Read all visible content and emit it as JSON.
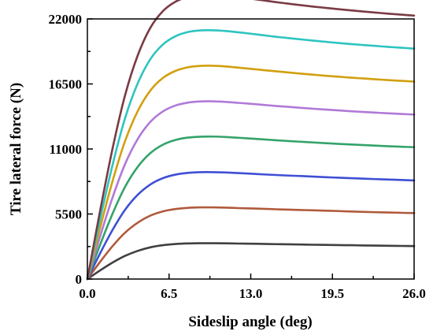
{
  "chart_data": {
    "type": "line",
    "title": "",
    "xlabel": "Sideslip angle (deg)",
    "ylabel": "Tire lateral force (N)",
    "xlim": [
      0,
      26
    ],
    "ylim": [
      0,
      22000
    ],
    "x_ticks": [
      0,
      6.5,
      13,
      19.5,
      26
    ],
    "x_tick_labels": [
      "0.0",
      "6.5",
      "13.0",
      "19.5",
      "26.0"
    ],
    "y_ticks": [
      0,
      5500,
      11000,
      16500,
      22000
    ],
    "y_tick_labels": [
      "0",
      "5500",
      "11000",
      "16500",
      "22000"
    ],
    "grid": false,
    "x": [
      0,
      1,
      2,
      3,
      4,
      5,
      6,
      7,
      8,
      9,
      10,
      11,
      12,
      13,
      14,
      15,
      16,
      17,
      18,
      19,
      20,
      21,
      22,
      23,
      24,
      25,
      26
    ],
    "series": [
      {
        "color": "#404040",
        "values": [
          0,
          720,
          1390,
          1960,
          2380,
          2680,
          2860,
          2960,
          3010,
          3030,
          3030,
          3020,
          3000,
          2990,
          2970,
          2950,
          2940,
          2920,
          2900,
          2890,
          2870,
          2860,
          2840,
          2830,
          2810,
          2800,
          2790
        ]
      },
      {
        "color": "#b05a3c",
        "values": [
          0,
          1440,
          2780,
          3920,
          4760,
          5360,
          5720,
          5920,
          6020,
          6060,
          6060,
          6040,
          6000,
          5970,
          5940,
          5900,
          5870,
          5840,
          5810,
          5780,
          5750,
          5710,
          5680,
          5650,
          5630,
          5600,
          5580
        ]
      },
      {
        "color": "#3f4fd4",
        "values": [
          0,
          2150,
          4150,
          5860,
          7120,
          7990,
          8530,
          8830,
          8980,
          9040,
          9040,
          9010,
          8960,
          8910,
          8850,
          8800,
          8750,
          8710,
          8660,
          8610,
          8570,
          8530,
          8490,
          8450,
          8410,
          8380,
          8340
        ]
      },
      {
        "color": "#34a36a",
        "values": [
          0,
          2860,
          5520,
          7800,
          9480,
          10640,
          11360,
          11760,
          11960,
          12040,
          12050,
          12010,
          11950,
          11880,
          11810,
          11740,
          11670,
          11610,
          11550,
          11490,
          11430,
          11380,
          11330,
          11280,
          11230,
          11190,
          11150
        ]
      },
      {
        "color": "#b07ad8",
        "values": [
          0,
          3570,
          6890,
          9730,
          11830,
          13280,
          14170,
          14670,
          14920,
          15020,
          15030,
          14980,
          14900,
          14820,
          14730,
          14640,
          14560,
          14480,
          14400,
          14330,
          14260,
          14190,
          14130,
          14070,
          14010,
          13960,
          13910
        ]
      },
      {
        "color": "#d1a00e",
        "values": [
          0,
          4280,
          8270,
          11670,
          14190,
          15930,
          17000,
          17600,
          17910,
          18030,
          18040,
          17980,
          17880,
          17780,
          17670,
          17570,
          17470,
          17370,
          17280,
          17190,
          17110,
          17030,
          16960,
          16890,
          16820,
          16760,
          16700
        ]
      },
      {
        "color": "#2ec4c0",
        "values": [
          0,
          4990,
          9640,
          13610,
          16540,
          18580,
          19830,
          20530,
          20890,
          21030,
          21040,
          20980,
          20870,
          20750,
          20620,
          20490,
          20380,
          20270,
          20160,
          20060,
          19960,
          19870,
          19790,
          19710,
          19630,
          19560,
          19490
        ]
      },
      {
        "color": "#7a3b44",
        "values": [
          0,
          5700,
          11020,
          15550,
          18900,
          21230,
          22650,
          23450,
          23860,
          24020,
          24040,
          23970,
          23840,
          23710,
          23570,
          23420,
          23290,
          23160,
          23040,
          22930,
          22820,
          22720,
          22620,
          22530,
          22440,
          22360,
          22280
        ]
      }
    ]
  }
}
